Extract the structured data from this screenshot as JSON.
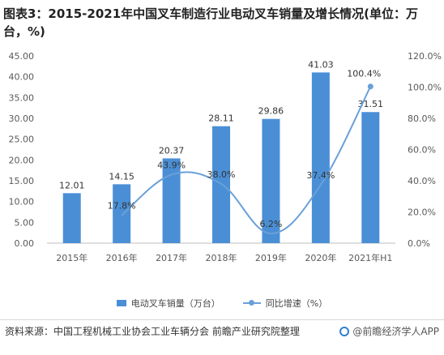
{
  "title": "图表3：2015-2021年中国叉车制造行业电动叉车销量及增长情况(单位：万台，%)",
  "chart_data": {
    "type": "bar",
    "categories": [
      "2015年",
      "2016年",
      "2017年",
      "2018年",
      "2019年",
      "2020年",
      "2021年H1"
    ],
    "series": [
      {
        "name": "电动叉车销量（万台）",
        "type": "bar",
        "axis": "left",
        "values": [
          12.01,
          14.15,
          20.37,
          28.11,
          29.86,
          41.03,
          31.51
        ],
        "labels": [
          "12.01",
          "14.15",
          "20.37",
          "28.11",
          "29.86",
          "41.03",
          "31.51"
        ],
        "color": "#4a8fd6"
      },
      {
        "name": "同比增速（%）",
        "type": "line",
        "axis": "right",
        "values": [
          null,
          17.8,
          43.9,
          38.0,
          6.2,
          37.4,
          100.4
        ],
        "labels": [
          "",
          "17.8%",
          "43.9%",
          "38.0%",
          "6.2%",
          "37.4%",
          "100.4%"
        ],
        "color": "#6aa0d8"
      }
    ],
    "ylim": [
      0,
      45
    ],
    "y_ticks": [
      "0.00",
      "5.00",
      "10.00",
      "15.00",
      "20.00",
      "25.00",
      "30.00",
      "35.00",
      "40.00",
      "45.00"
    ],
    "y2lim": [
      0,
      120
    ],
    "y2_ticks": [
      "0.0%",
      "20.0%",
      "40.0%",
      "60.0%",
      "80.0%",
      "100.0%",
      "120.0%"
    ],
    "grid": false,
    "legend": "bottom"
  },
  "legend": {
    "bar_label": "电动叉车销量（万台）",
    "line_label": "同比增速（%）"
  },
  "footer": {
    "source": "资料来源：中国工程机械工业协会工业车辆分会 前瞻产业研究院整理",
    "brand": "@前瞻经济学人APP"
  }
}
